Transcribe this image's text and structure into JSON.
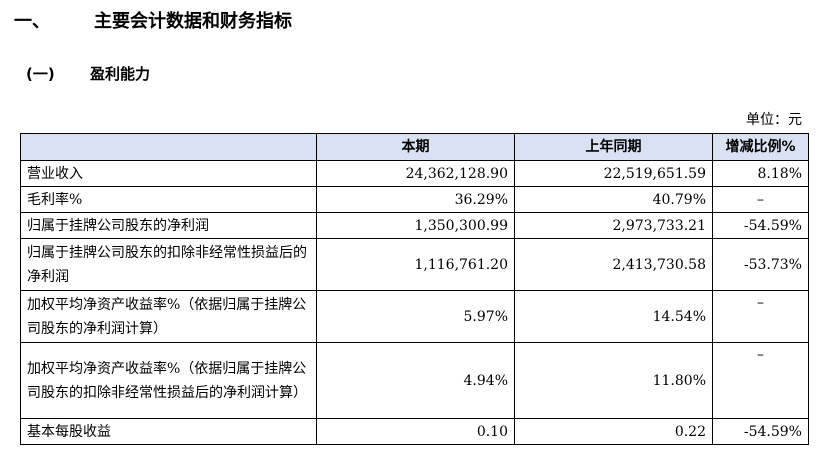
{
  "heading1": {
    "number": "一、",
    "title": "主要会计数据和财务指标"
  },
  "heading2": {
    "number": "(一)",
    "title": "盈利能力"
  },
  "unit_label": "单位：元",
  "table": {
    "headers": [
      "",
      "本期",
      "上年同期",
      "增减比例%"
    ],
    "rows": [
      {
        "label": "营业收入",
        "current": "24,362,128.90",
        "previous": "22,519,651.59",
        "change": "8.18%"
      },
      {
        "label": "毛利率%",
        "current": "36.29%",
        "previous": "40.79%",
        "change": "–"
      },
      {
        "label": "归属于挂牌公司股东的净利润",
        "current": "1,350,300.99",
        "previous": "2,973,733.21",
        "change": "-54.59%"
      },
      {
        "label": "归属于挂牌公司股东的扣除非经常性损益后的净利润",
        "current": "1,116,761.20",
        "previous": "2,413,730.58",
        "change": "-53.73%"
      },
      {
        "label": "加权平均净资产收益率%（依据归属于挂牌公司股东的净利润计算）",
        "current": "5.97%",
        "previous": "14.54%",
        "change": "–"
      },
      {
        "label": "加权平均净资产收益率%（依据归属于挂牌公司股东的扣除非经常性损益后的净利润计算）",
        "current": "4.94%",
        "previous": "11.80%",
        "change": "–"
      },
      {
        "label": "基本每股收益",
        "current": "0.10",
        "previous": "0.22",
        "change": "-54.59%"
      }
    ]
  }
}
